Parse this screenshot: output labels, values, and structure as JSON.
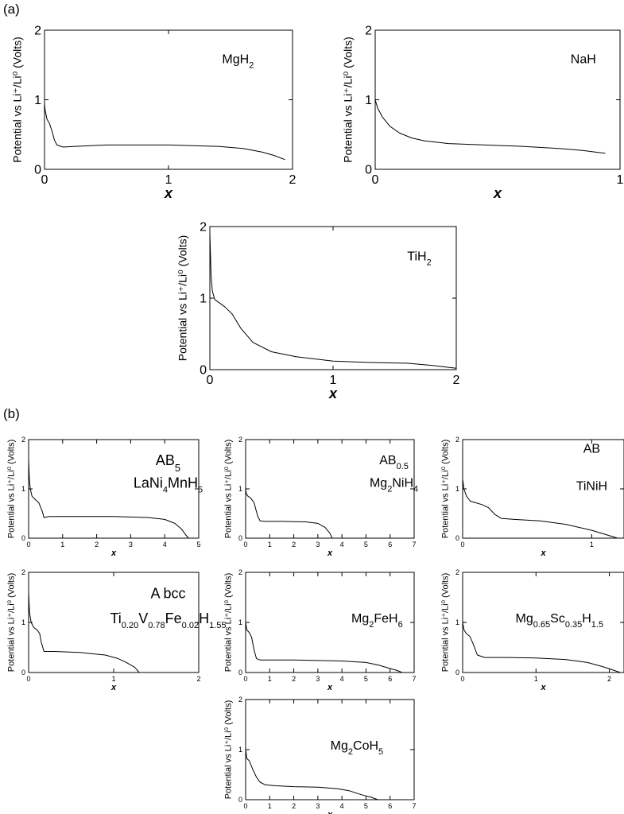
{
  "panel_labels": {
    "a": "(a)",
    "b": "(b)"
  },
  "chart_data": [
    {
      "type": "line",
      "group": "a",
      "label": {
        "base": "MgH",
        "sub": "2",
        "tail": ""
      },
      "xlim": [
        0,
        2
      ],
      "ylim": [
        0,
        2
      ],
      "xticks": [
        "0",
        "1",
        "2"
      ],
      "yticks": [
        "0",
        "1",
        "2"
      ],
      "xlabel": "x",
      "ylabel": "Potential vs  Li⁺/Li⁰ (Volts)",
      "x": [
        0,
        0.005,
        0.02,
        0.04,
        0.06,
        0.08,
        0.1,
        0.15,
        0.25,
        0.5,
        0.8,
        1.0,
        1.2,
        1.4,
        1.6,
        1.75,
        1.85,
        1.94
      ],
      "y": [
        0.95,
        0.85,
        0.72,
        0.66,
        0.55,
        0.42,
        0.35,
        0.32,
        0.33,
        0.35,
        0.35,
        0.35,
        0.34,
        0.33,
        0.3,
        0.25,
        0.2,
        0.14
      ]
    },
    {
      "type": "line",
      "group": "a",
      "label": {
        "base": "NaH",
        "sub": "",
        "tail": ""
      },
      "xlim": [
        0,
        1
      ],
      "ylim": [
        0,
        2
      ],
      "xticks": [
        "0",
        "1"
      ],
      "yticks": [
        "0",
        "1",
        "2"
      ],
      "xlabel": "x",
      "ylabel": "Potential vs  Li⁺/Li⁰ (Volts)",
      "x": [
        0,
        0.01,
        0.03,
        0.06,
        0.1,
        0.15,
        0.2,
        0.3,
        0.45,
        0.6,
        0.75,
        0.85,
        0.94
      ],
      "y": [
        1.0,
        0.88,
        0.75,
        0.62,
        0.52,
        0.45,
        0.41,
        0.37,
        0.35,
        0.33,
        0.3,
        0.27,
        0.23
      ]
    },
    {
      "type": "line",
      "group": "a",
      "label": {
        "base": "TiH",
        "sub": "2",
        "tail": ""
      },
      "xlim": [
        0,
        2
      ],
      "ylim": [
        0,
        2
      ],
      "xticks": [
        "0",
        "1",
        "2"
      ],
      "yticks": [
        "0",
        "1",
        "2"
      ],
      "xlabel": "x",
      "ylabel": "Potential vs  Li⁺/Li⁰ (Volts)",
      "x": [
        0,
        0.005,
        0.01,
        0.02,
        0.04,
        0.08,
        0.12,
        0.18,
        0.25,
        0.35,
        0.5,
        0.7,
        1.0,
        1.3,
        1.6,
        1.8,
        2.0
      ],
      "y": [
        1.9,
        1.6,
        1.3,
        1.1,
        0.98,
        0.93,
        0.88,
        0.78,
        0.58,
        0.38,
        0.25,
        0.18,
        0.12,
        0.1,
        0.09,
        0.06,
        0.02
      ]
    },
    {
      "type": "line",
      "group": "b",
      "label": {
        "base": "AB",
        "sub": "5",
        "tail": ""
      },
      "label2": {
        "html": "LaNi<tspan baseline-shift='sub' font-size='11'>4</tspan>MnH<tspan baseline-shift='sub' font-size='11'>5</tspan>"
      },
      "xlim": [
        0,
        5
      ],
      "ylim": [
        0,
        2
      ],
      "xticks": [
        "0",
        "1",
        "2",
        "3",
        "4",
        "5"
      ],
      "yticks": [
        "0",
        "1",
        "2"
      ],
      "xlabel": "x",
      "ylabel": "Potential vs  Li⁺/Li⁰ (Volts)",
      "x": [
        0,
        0.02,
        0.05,
        0.1,
        0.2,
        0.3,
        0.4,
        0.45,
        0.6,
        1.5,
        2.5,
        3.5,
        4.0,
        4.3,
        4.5,
        4.6,
        4.7
      ],
      "y": [
        1.6,
        1.2,
        1.0,
        0.85,
        0.78,
        0.72,
        0.55,
        0.42,
        0.44,
        0.44,
        0.44,
        0.42,
        0.38,
        0.3,
        0.18,
        0.08,
        0.0
      ]
    },
    {
      "type": "line",
      "group": "b",
      "label": {
        "base": "AB",
        "sub": "0.5",
        "tail": ""
      },
      "label2": {
        "html": "Mg<tspan baseline-shift='sub' font-size='11'>2</tspan>NiH<tspan baseline-shift='sub' font-size='11'>4</tspan>"
      },
      "xlim": [
        0,
        7
      ],
      "ylim": [
        0,
        2
      ],
      "xticks": [
        "0",
        "1",
        "2",
        "3",
        "4",
        "5",
        "6",
        "7"
      ],
      "yticks": [
        "0",
        "1",
        "2"
      ],
      "xlabel": "x",
      "ylabel": "Potential vs  Li⁺/Li⁰ (Volts)",
      "x": [
        0,
        0.03,
        0.1,
        0.2,
        0.35,
        0.5,
        0.6,
        0.8,
        1.5,
        2.5,
        3.0,
        3.3,
        3.5,
        3.6
      ],
      "y": [
        1.0,
        0.9,
        0.85,
        0.82,
        0.72,
        0.45,
        0.35,
        0.34,
        0.34,
        0.33,
        0.3,
        0.22,
        0.1,
        0.0
      ]
    },
    {
      "type": "line",
      "group": "b",
      "label": {
        "base": "AB",
        "sub": "",
        "tail": ""
      },
      "label2": {
        "html": "TiNiH"
      },
      "xlim": [
        0,
        1.25
      ],
      "ylim": [
        0,
        2
      ],
      "xticks": [
        "0",
        "1"
      ],
      "yticks": [
        "0",
        "1",
        "2"
      ],
      "xlabel": "x",
      "ylabel": "Potential vs  Li⁺/Li⁰ (Volts)",
      "x": [
        0,
        0.01,
        0.03,
        0.06,
        0.1,
        0.15,
        0.2,
        0.25,
        0.3,
        0.4,
        0.6,
        0.8,
        1.0,
        1.1,
        1.2
      ],
      "y": [
        1.2,
        1.0,
        0.85,
        0.75,
        0.72,
        0.68,
        0.62,
        0.48,
        0.4,
        0.38,
        0.35,
        0.28,
        0.16,
        0.08,
        0.0
      ]
    },
    {
      "type": "line",
      "group": "b",
      "label": {
        "base": "A bcc",
        "sub": "",
        "tail": ""
      },
      "label2": {
        "html": "Ti<tspan baseline-shift='sub' font-size='11'>0.20</tspan>V<tspan baseline-shift='sub' font-size='11'>0.78</tspan>Fe<tspan baseline-shift='sub' font-size='11'>0.02</tspan>H<tspan baseline-shift='sub' font-size='11'>1.55</tspan>"
      },
      "xlim": [
        0,
        2
      ],
      "ylim": [
        0,
        2
      ],
      "xticks": [
        "0",
        "1",
        "2"
      ],
      "yticks": [
        "0",
        "1",
        "2"
      ],
      "xlabel": "x",
      "ylabel": "Potential vs  Li⁺/Li⁰ (Volts)",
      "x": [
        0,
        0.01,
        0.03,
        0.06,
        0.1,
        0.13,
        0.15,
        0.18,
        0.3,
        0.6,
        0.9,
        1.05,
        1.15,
        1.25,
        1.3
      ],
      "y": [
        1.6,
        1.2,
        1.0,
        0.9,
        0.85,
        0.78,
        0.6,
        0.42,
        0.42,
        0.4,
        0.35,
        0.28,
        0.2,
        0.1,
        0.0
      ]
    },
    {
      "type": "line",
      "group": "b",
      "label": {
        "base": "",
        "sub": "",
        "tail": ""
      },
      "label2": {
        "html": "Mg<tspan baseline-shift='sub' font-size='11'>2</tspan>FeH<tspan baseline-shift='sub' font-size='11'>6</tspan>"
      },
      "xlim": [
        0,
        7
      ],
      "ylim": [
        0,
        2
      ],
      "xticks": [
        "0",
        "1",
        "2",
        "3",
        "4",
        "5",
        "6",
        "7"
      ],
      "yticks": [
        "0",
        "1",
        "2"
      ],
      "xlabel": "x",
      "ylabel": "Potential vs  Li⁺/Li⁰ (Volts)",
      "x": [
        0,
        0.05,
        0.15,
        0.25,
        0.35,
        0.45,
        0.6,
        1.0,
        2.0,
        3.0,
        4.0,
        5.0,
        5.5,
        6.0,
        6.3,
        6.5
      ],
      "y": [
        1.0,
        0.85,
        0.8,
        0.7,
        0.45,
        0.28,
        0.25,
        0.25,
        0.25,
        0.24,
        0.23,
        0.2,
        0.15,
        0.08,
        0.04,
        0.0
      ]
    },
    {
      "type": "line",
      "group": "b",
      "label": {
        "base": "",
        "sub": "",
        "tail": ""
      },
      "label2": {
        "html": "Mg<tspan baseline-shift='sub' font-size='11'>0.65</tspan>Sc<tspan baseline-shift='sub' font-size='11'>0.35</tspan>H<tspan baseline-shift='sub' font-size='11'>1.5</tspan>"
      },
      "xlim": [
        0,
        2.2
      ],
      "ylim": [
        0,
        2
      ],
      "xticks": [
        "0",
        "1",
        "2"
      ],
      "yticks": [
        "0",
        "1",
        "2"
      ],
      "xlabel": "x",
      "ylabel": "Potential vs  Li⁺/Li⁰ (Volts)",
      "x": [
        0,
        0.02,
        0.05,
        0.1,
        0.15,
        0.2,
        0.3,
        0.6,
        1.0,
        1.4,
        1.7,
        1.9,
        2.05,
        2.15
      ],
      "y": [
        1.0,
        0.85,
        0.78,
        0.72,
        0.55,
        0.35,
        0.3,
        0.3,
        0.29,
        0.26,
        0.2,
        0.12,
        0.05,
        0.0
      ]
    },
    {
      "type": "line",
      "group": "b",
      "label": {
        "base": "",
        "sub": "",
        "tail": ""
      },
      "label2": {
        "html": "Mg<tspan baseline-shift='sub' font-size='11'>2</tspan>CoH<tspan baseline-shift='sub' font-size='11'>5</tspan>"
      },
      "xlim": [
        0,
        7
      ],
      "ylim": [
        0,
        2
      ],
      "xticks": [
        "0",
        "1",
        "2",
        "3",
        "4",
        "5",
        "6",
        "7"
      ],
      "yticks": [
        "0",
        "1",
        "2"
      ],
      "xlabel": "x",
      "ylabel": "Potential vs  Li⁺/Li⁰ (Volts)",
      "x": [
        0,
        0.05,
        0.15,
        0.3,
        0.45,
        0.6,
        0.8,
        1.2,
        2.0,
        3.0,
        3.8,
        4.3,
        4.8,
        5.2,
        5.5
      ],
      "y": [
        1.0,
        0.82,
        0.78,
        0.6,
        0.45,
        0.35,
        0.3,
        0.28,
        0.26,
        0.25,
        0.22,
        0.18,
        0.1,
        0.05,
        0.0
      ]
    }
  ]
}
